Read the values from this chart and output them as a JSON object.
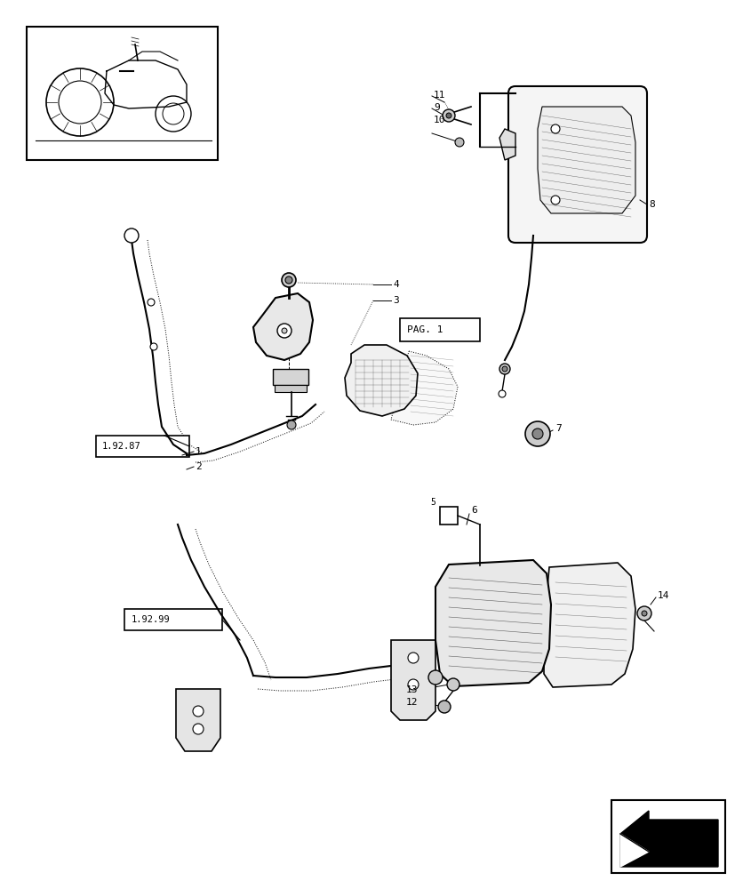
{
  "bg": "#ffffff",
  "lc": "#000000",
  "fig_w": 8.28,
  "fig_h": 10.0,
  "dpi": 100
}
